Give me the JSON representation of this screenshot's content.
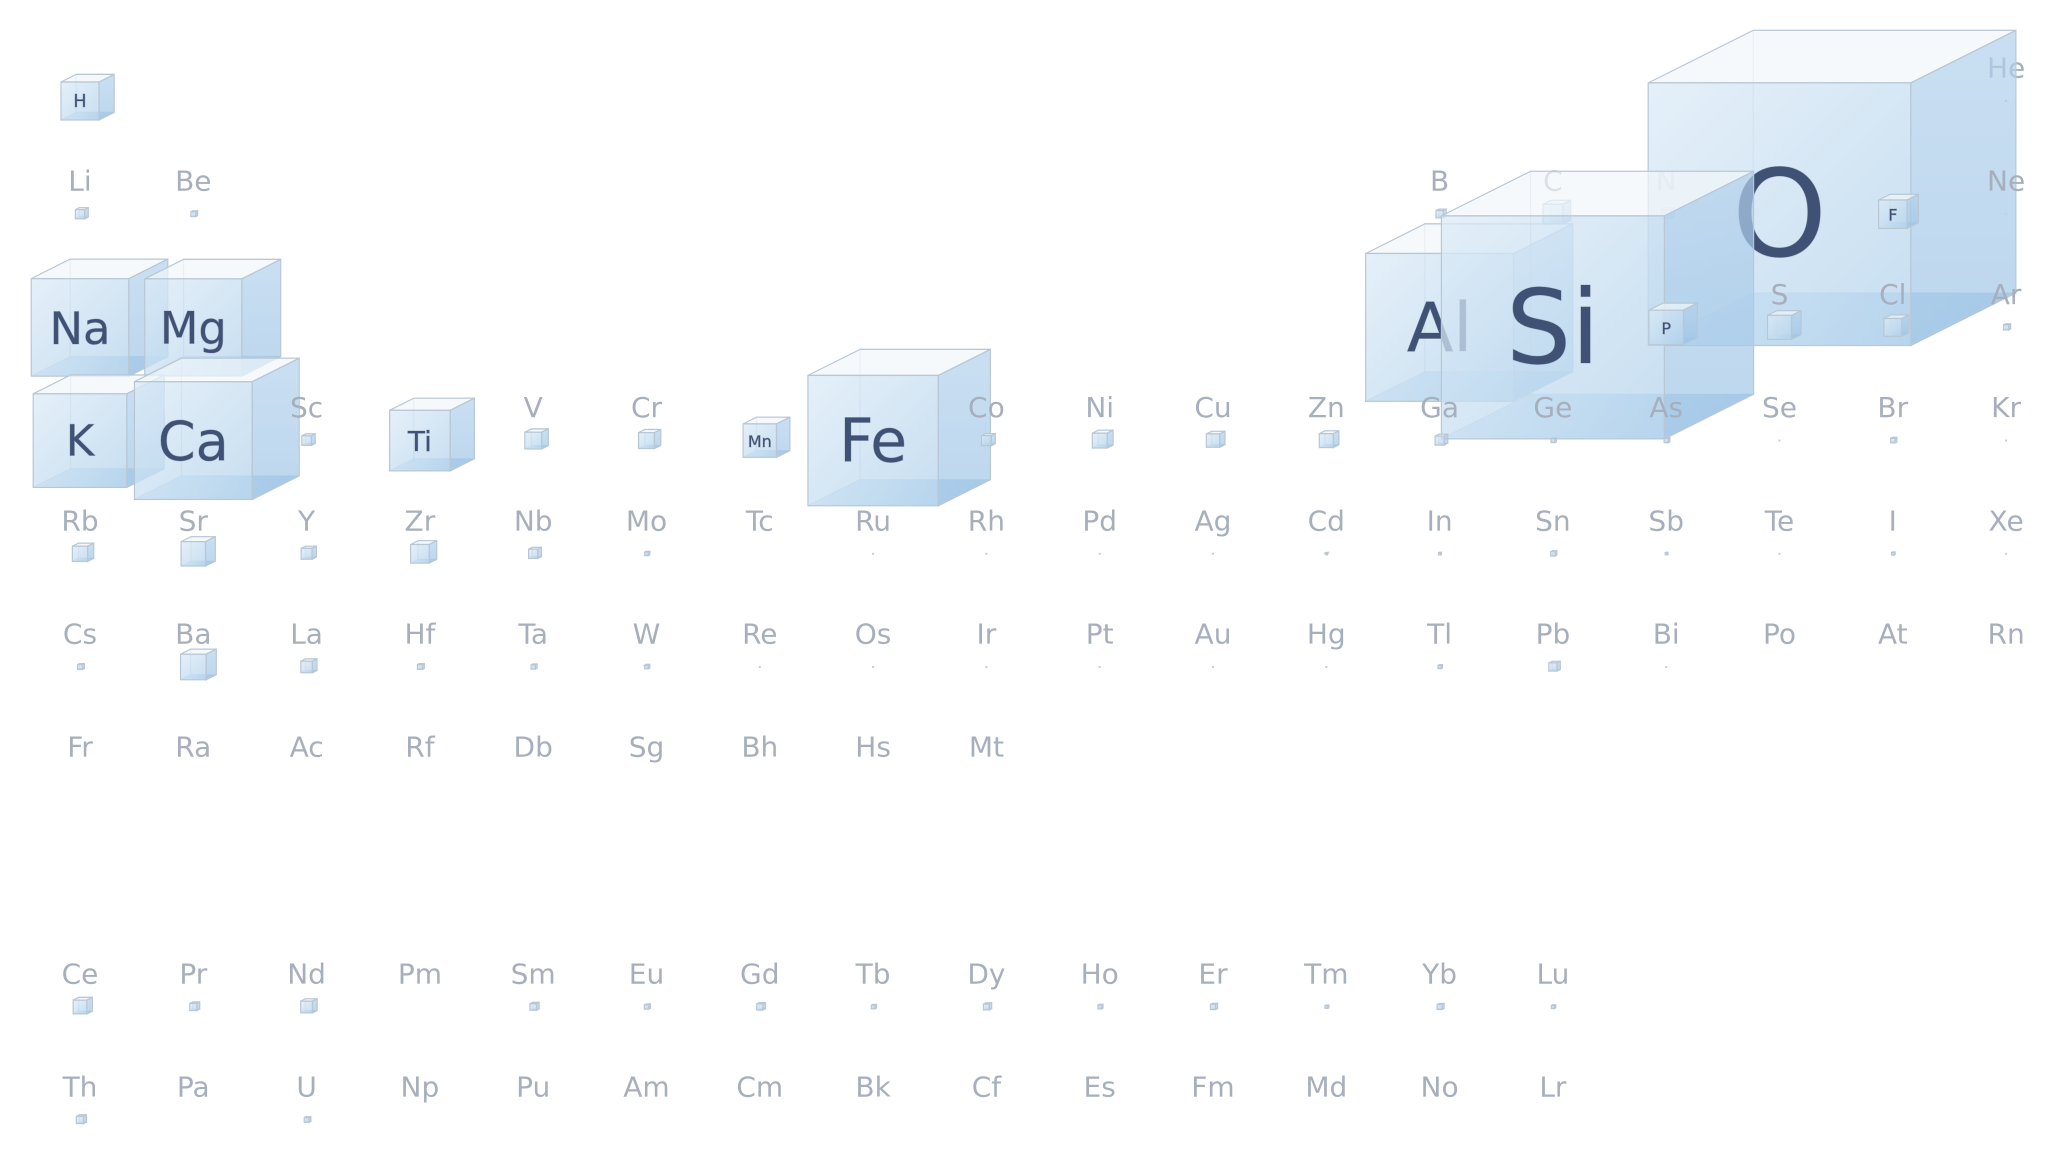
{
  "colors": {
    "label": "#a7afbd",
    "inner_label": "#3f5275",
    "front": "#cfe2f2",
    "side": "#a9cbe8",
    "top": "#f3f7fb",
    "edge": "#b9c7d5"
  },
  "encoding": "cube volume proportional to element abundance",
  "elements": [
    [
      "H",
      1,
      1,
      1400
    ],
    [
      "He",
      1,
      18,
      0.008
    ],
    [
      "Li",
      2,
      1,
      20
    ],
    [
      "Be",
      2,
      2,
      2.8
    ],
    [
      "B",
      2,
      13,
      10
    ],
    [
      "C",
      2,
      14,
      200
    ],
    [
      "N",
      2,
      15,
      19
    ],
    [
      "O",
      2,
      16,
      461000
    ],
    [
      "F",
      2,
      17,
      585
    ],
    [
      "Ne",
      2,
      18,
      0.005
    ],
    [
      "Na",
      3,
      1,
      23600
    ],
    [
      "Mg",
      3,
      2,
      23300
    ],
    [
      "Al",
      3,
      13,
      82300
    ],
    [
      "Si",
      3,
      14,
      282000
    ],
    [
      "P",
      3,
      15,
      1050
    ],
    [
      "S",
      3,
      16,
      350
    ],
    [
      "Cl",
      3,
      17,
      145
    ],
    [
      "Ar",
      3,
      18,
      3.5
    ],
    [
      "K",
      4,
      1,
      20900
    ],
    [
      "Ca",
      4,
      2,
      41500
    ],
    [
      "Sc",
      4,
      3,
      22
    ],
    [
      "Ti",
      4,
      4,
      5650
    ],
    [
      "V",
      4,
      5,
      120
    ],
    [
      "Cr",
      4,
      6,
      102
    ],
    [
      "Mn",
      4,
      7,
      950
    ],
    [
      "Fe",
      4,
      8,
      56300
    ],
    [
      "Co",
      4,
      9,
      25
    ],
    [
      "Ni",
      4,
      10,
      84
    ],
    [
      "Cu",
      4,
      11,
      60
    ],
    [
      "Zn",
      4,
      12,
      70
    ],
    [
      "Ga",
      4,
      13,
      19
    ],
    [
      "Ge",
      4,
      14,
      1.5
    ],
    [
      "As",
      4,
      15,
      1.8
    ],
    [
      "Se",
      4,
      16,
      0.05
    ],
    [
      "Br",
      4,
      17,
      2.4
    ],
    [
      "Kr",
      4,
      18,
      0.0001
    ],
    [
      "Rb",
      5,
      1,
      90
    ],
    [
      "Sr",
      5,
      2,
      370
    ],
    [
      "Y",
      5,
      3,
      33
    ],
    [
      "Zr",
      5,
      4,
      165
    ],
    [
      "Nb",
      5,
      5,
      20
    ],
    [
      "Mo",
      5,
      6,
      1.2
    ],
    [
      "Tc",
      5,
      7,
      null
    ],
    [
      "Ru",
      5,
      8,
      0.001
    ],
    [
      "Rh",
      5,
      9,
      0.001
    ],
    [
      "Pd",
      5,
      10,
      0.015
    ],
    [
      "Ag",
      5,
      11,
      0.075
    ],
    [
      "Cd",
      5,
      12,
      0.15
    ],
    [
      "In",
      5,
      13,
      0.25
    ],
    [
      "Sn",
      5,
      14,
      2.3
    ],
    [
      "Sb",
      5,
      15,
      0.2
    ],
    [
      "Te",
      5,
      16,
      0.001
    ],
    [
      "I",
      5,
      17,
      0.45
    ],
    [
      "Xe",
      5,
      18,
      3e-05
    ],
    [
      "Cs",
      6,
      1,
      3
    ],
    [
      "Ba",
      6,
      2,
      425
    ],
    [
      "La",
      6,
      3,
      39
    ],
    [
      "Hf",
      6,
      4,
      3
    ],
    [
      "Ta",
      6,
      5,
      2
    ],
    [
      "W",
      6,
      6,
      1.25
    ],
    [
      "Re",
      6,
      7,
      0.0007
    ],
    [
      "Os",
      6,
      8,
      0.0015
    ],
    [
      "Ir",
      6,
      9,
      0.001
    ],
    [
      "Pt",
      6,
      10,
      0.005
    ],
    [
      "Au",
      6,
      11,
      0.004
    ],
    [
      "Hg",
      6,
      12,
      0.085
    ],
    [
      "Tl",
      6,
      13,
      0.85
    ],
    [
      "Pb",
      6,
      14,
      14
    ],
    [
      "Bi",
      6,
      15,
      0.0085
    ],
    [
      "Po",
      6,
      16,
      null
    ],
    [
      "At",
      6,
      17,
      null
    ],
    [
      "Rn",
      6,
      18,
      null
    ],
    [
      "Fr",
      7,
      1,
      null
    ],
    [
      "Ra",
      7,
      2,
      null
    ],
    [
      "Ac",
      7,
      3,
      null
    ],
    [
      "Rf",
      7,
      4,
      null
    ],
    [
      "Db",
      7,
      5,
      null
    ],
    [
      "Sg",
      7,
      6,
      null
    ],
    [
      "Bh",
      7,
      7,
      null
    ],
    [
      "Hs",
      7,
      8,
      null
    ],
    [
      "Mt",
      7,
      9,
      null
    ],
    [
      "Ce",
      8,
      1,
      66
    ],
    [
      "Pr",
      8,
      2,
      9.2
    ],
    [
      "Nd",
      8,
      3,
      41.5
    ],
    [
      "Pm",
      8,
      4,
      null
    ],
    [
      "Sm",
      8,
      5,
      7.05
    ],
    [
      "Eu",
      8,
      6,
      2
    ],
    [
      "Gd",
      8,
      7,
      6.2
    ],
    [
      "Tb",
      8,
      8,
      1.2
    ],
    [
      "Dy",
      8,
      9,
      5.2
    ],
    [
      "Ho",
      8,
      10,
      1.3
    ],
    [
      "Er",
      8,
      11,
      3.5
    ],
    [
      "Tm",
      8,
      12,
      0.52
    ],
    [
      "Yb",
      8,
      13,
      3.2
    ],
    [
      "Lu",
      8,
      14,
      0.8
    ],
    [
      "Th",
      9,
      1,
      9.6
    ],
    [
      "Pa",
      9,
      2,
      null
    ],
    [
      "U",
      9,
      3,
      2.7
    ],
    [
      "Np",
      9,
      4,
      null
    ],
    [
      "Pu",
      9,
      5,
      null
    ],
    [
      "Am",
      9,
      6,
      null
    ],
    [
      "Cm",
      9,
      7,
      null
    ],
    [
      "Bk",
      9,
      8,
      null
    ],
    [
      "Cf",
      9,
      9,
      null
    ],
    [
      "Es",
      9,
      10,
      null
    ],
    [
      "Fm",
      9,
      11,
      null
    ],
    [
      "Md",
      9,
      12,
      null
    ],
    [
      "No",
      9,
      13,
      null
    ],
    [
      "Lr",
      9,
      14,
      null
    ]
  ]
}
